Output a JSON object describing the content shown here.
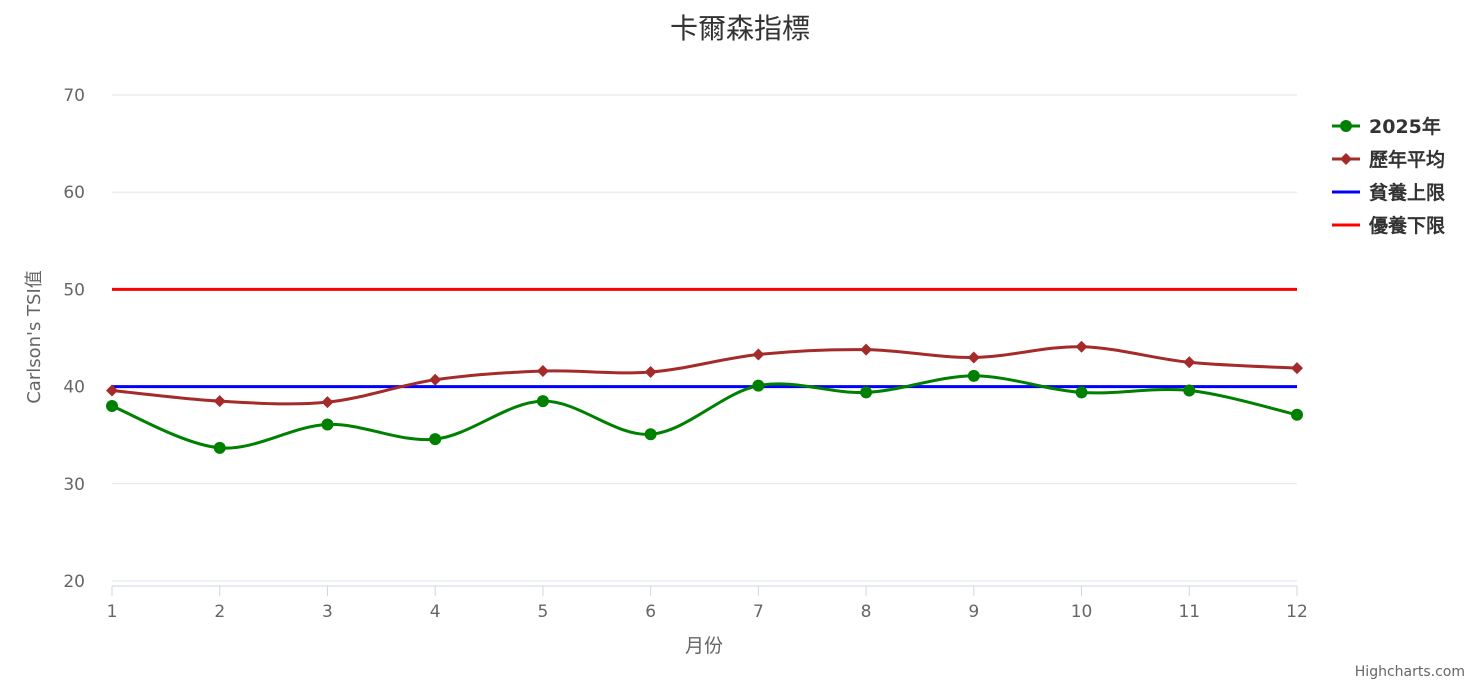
{
  "credits": "Highcharts.com",
  "colors": {
    "series_2025": "#008000",
    "series_avg": "#A52A2A",
    "oligotrophic": "#0000FF",
    "eutrophic": "#FF0000",
    "grid": "#e6e6e6",
    "axis_line": "#ccd6eb",
    "text": "#333333",
    "axis_label": "#666666"
  },
  "chart_data": {
    "type": "line",
    "title": "卡爾森指標",
    "xlabel": "月份",
    "ylabel": "Carlson's TSI值",
    "ylim": [
      20,
      70
    ],
    "yticks": [
      20,
      30,
      40,
      50,
      60,
      70
    ],
    "xlim": [
      1,
      12
    ],
    "categories": [
      "1",
      "2",
      "3",
      "4",
      "5",
      "6",
      "7",
      "8",
      "9",
      "10",
      "11",
      "12"
    ],
    "grid": true,
    "legend_position": "right",
    "series": [
      {
        "name": "2025年",
        "marker": "circle",
        "color": "#008000",
        "curve": "spline",
        "values": [
          38.0,
          33.7,
          36.1,
          34.6,
          38.5,
          35.1,
          40.1,
          39.4,
          41.1,
          39.4,
          39.6,
          37.1
        ]
      },
      {
        "name": "歷年平均",
        "marker": "diamond",
        "color": "#A52A2A",
        "curve": "spline",
        "values": [
          39.6,
          38.5,
          38.4,
          40.7,
          41.6,
          41.5,
          43.3,
          43.8,
          43.0,
          44.1,
          42.5,
          41.9
        ]
      },
      {
        "name": "貧養上限",
        "marker": "none",
        "color": "#0000FF",
        "curve": "straight",
        "values": [
          40,
          40,
          40,
          40,
          40,
          40,
          40,
          40,
          40,
          40,
          40,
          40
        ]
      },
      {
        "name": "優養下限",
        "marker": "none",
        "color": "#FF0000",
        "curve": "straight",
        "values": [
          50,
          50,
          50,
          50,
          50,
          50,
          50,
          50,
          50,
          50,
          50,
          50
        ]
      }
    ]
  }
}
